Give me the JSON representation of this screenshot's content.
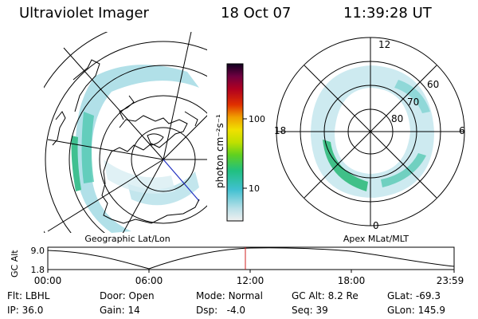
{
  "header": {
    "instrument": "Ultraviolet Imager",
    "date": "18 Oct 07",
    "time": "11:39:28 UT"
  },
  "colorbar": {
    "unit_label": "photon cm⁻²s⁻¹",
    "ticks": [
      "100",
      "10"
    ]
  },
  "left_map": {
    "caption": "Geographic Lat/Lon"
  },
  "right_map": {
    "caption": "Apex MLat/MLT",
    "mlt_labels": [
      "12",
      "18",
      "6",
      "0"
    ],
    "lat_labels": [
      "60",
      "70",
      "80"
    ]
  },
  "timeline": {
    "axis_label": "GC Alt",
    "y_ticks": [
      "9.0",
      "1.8"
    ],
    "x_ticks": [
      "00:00",
      "06:00",
      "12:00",
      "18:00",
      "23:59"
    ],
    "marker_color": "#d02020"
  },
  "status": {
    "row1": [
      {
        "key": "Flt:",
        "value": "LBHL"
      },
      {
        "key": "Door:",
        "value": "Open"
      },
      {
        "key": "Mode:",
        "value": "Normal"
      },
      {
        "key": "GC Alt:",
        "value": "8.2 Re"
      },
      {
        "key": "GLat:",
        "value": "-69.3"
      }
    ],
    "row2": [
      {
        "key": "IP:",
        "value": "36.0"
      },
      {
        "key": "Gain:",
        "value": "14"
      },
      {
        "key": "Dsp:",
        "value": "-4.0"
      },
      {
        "key": "Seq:",
        "value": "39"
      },
      {
        "key": "GLon:",
        "value": "145.9"
      }
    ]
  }
}
